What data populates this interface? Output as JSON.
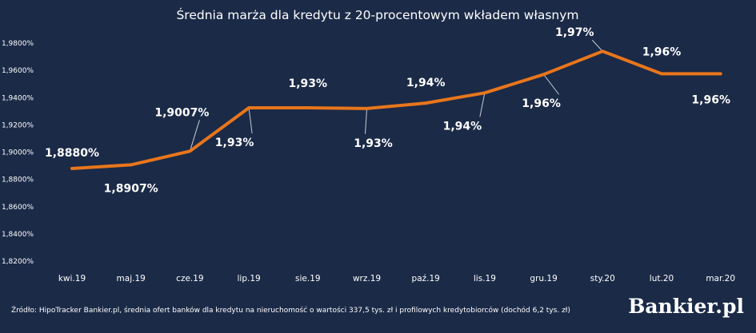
{
  "chart_data": {
    "type": "line",
    "title": "Średnia marża dla kredytu z 20-procentowym wkładem własnym",
    "categories": [
      "kwi.19",
      "maj.19",
      "cze.19",
      "lip.19",
      "sie.19",
      "wrz.19",
      "paź.19",
      "lis.19",
      "gru.19",
      "sty.20",
      "lut.20",
      "mar.20"
    ],
    "series": [
      {
        "values": [
          1.888,
          1.8907,
          1.9007,
          1.9325,
          1.9325,
          1.932,
          1.936,
          1.9435,
          1.957,
          1.974,
          1.9575,
          1.9575
        ],
        "labels": [
          "1,8880%",
          "1,8907%",
          "1,9007%",
          "1,93%",
          "1,93%",
          "1,93%",
          "1,94%",
          "1,94%",
          "1,96%",
          "1,97%",
          "1,96%",
          "1,96%"
        ],
        "color": "#e8761c"
      }
    ],
    "y_ticks": [
      "1,8200%",
      "1,8400%",
      "1,8600%",
      "1,8800%",
      "1,9000%",
      "1,9200%",
      "1,9400%",
      "1,9600%",
      "1,9800%"
    ],
    "ylim": [
      1.82,
      1.98
    ],
    "grid": false,
    "legend": "none"
  },
  "footer": {
    "source": "Źródło: HipoTracker Bankier.pl, średnia ofert banków dla kredytu na nieruchomość o wartości 337,5 tys. zł i profilowych kredytobiorców (dochód 6,2 tys. zł)",
    "logo": "Bankier.pl"
  },
  "colors": {
    "background": "#1b2a47",
    "line": "#e8761c",
    "text": "#ffffff",
    "leader": "#c8ccd4"
  }
}
